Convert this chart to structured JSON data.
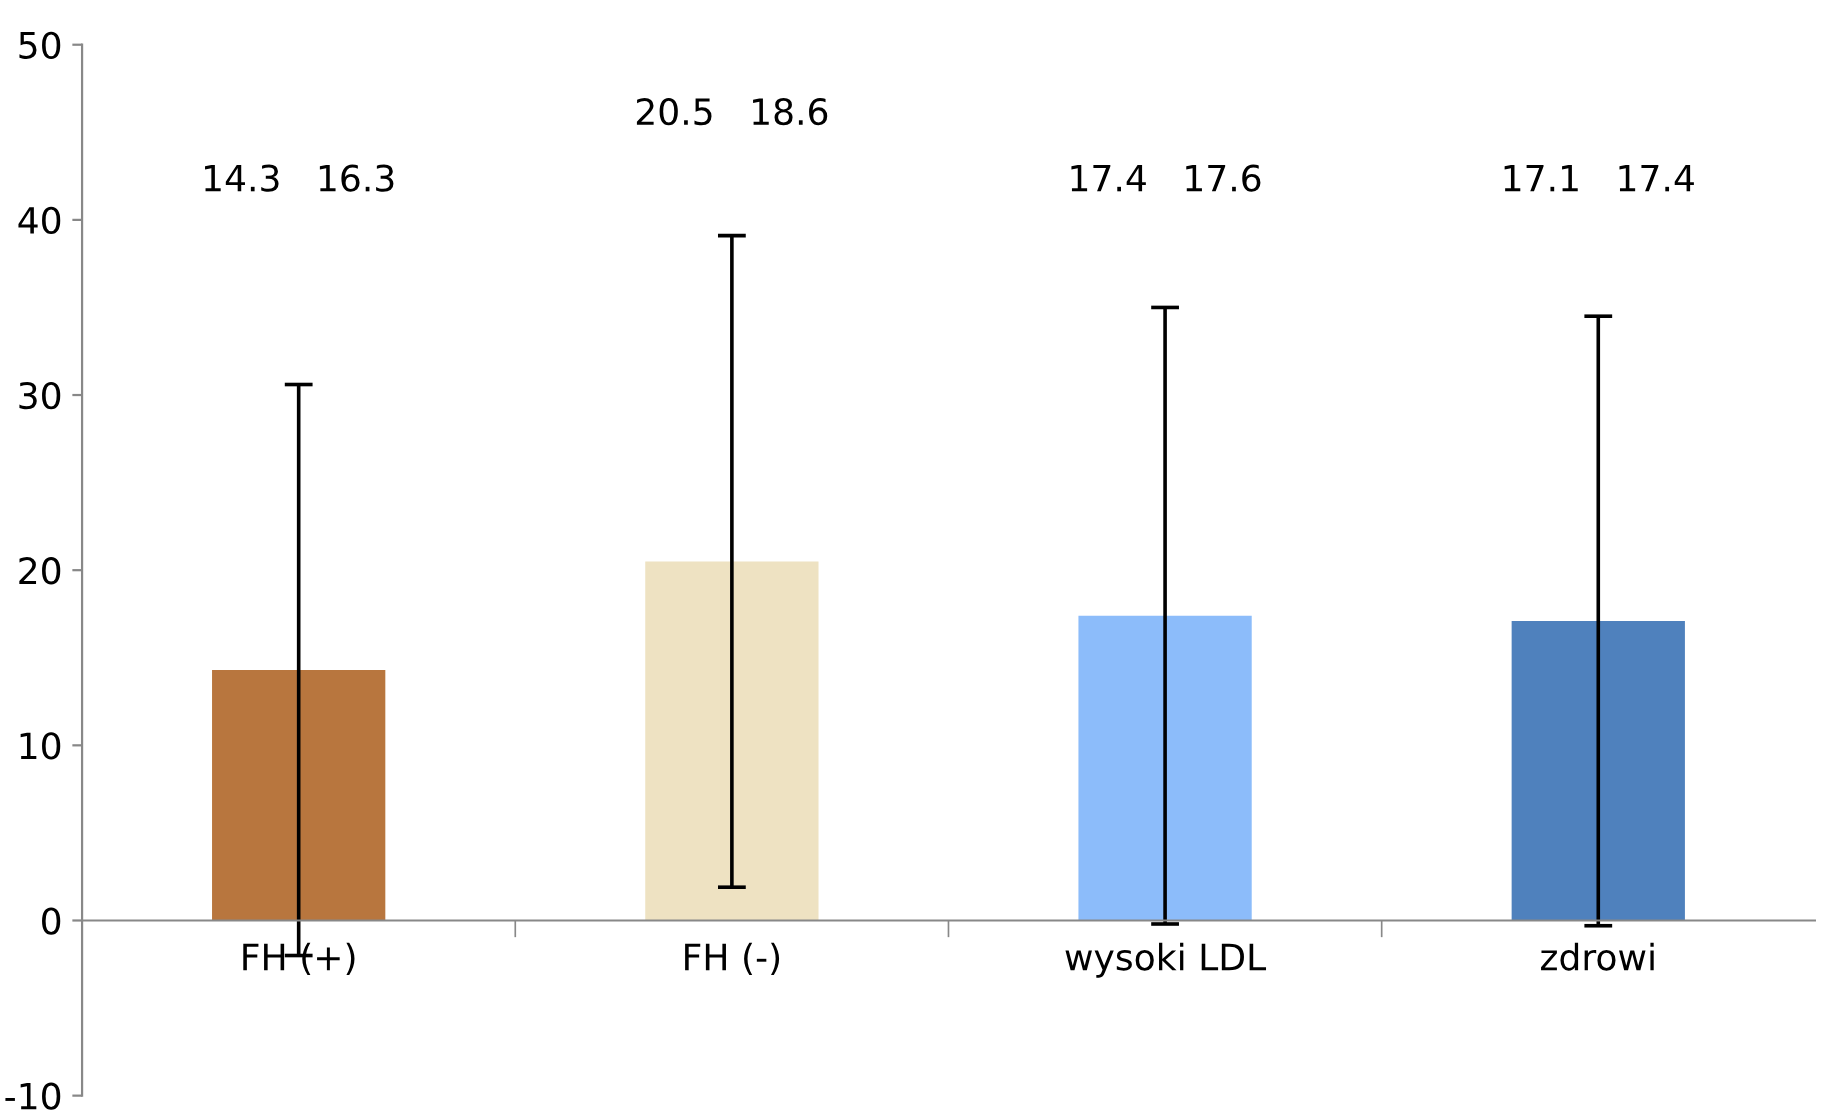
{
  "chart_data": {
    "type": "bar",
    "categories": [
      "FH (+)",
      "FH (-)",
      "wysoki LDL",
      "zdrowi"
    ],
    "values": [
      14.3,
      20.5,
      17.4,
      17.1
    ],
    "errors": [
      16.3,
      18.6,
      17.6,
      17.4
    ],
    "colors": [
      "#b8763e",
      "#eee2c2",
      "#8cbcfa",
      "#4f81bd"
    ],
    "ylim": [
      -10,
      50
    ],
    "yticks": [
      -10,
      0,
      10,
      20,
      30,
      40,
      50
    ],
    "grid": false,
    "annotations": [
      "14.3   16.3",
      "20.5   18.6",
      "17.4   17.6",
      "17.1   17.4"
    ]
  }
}
